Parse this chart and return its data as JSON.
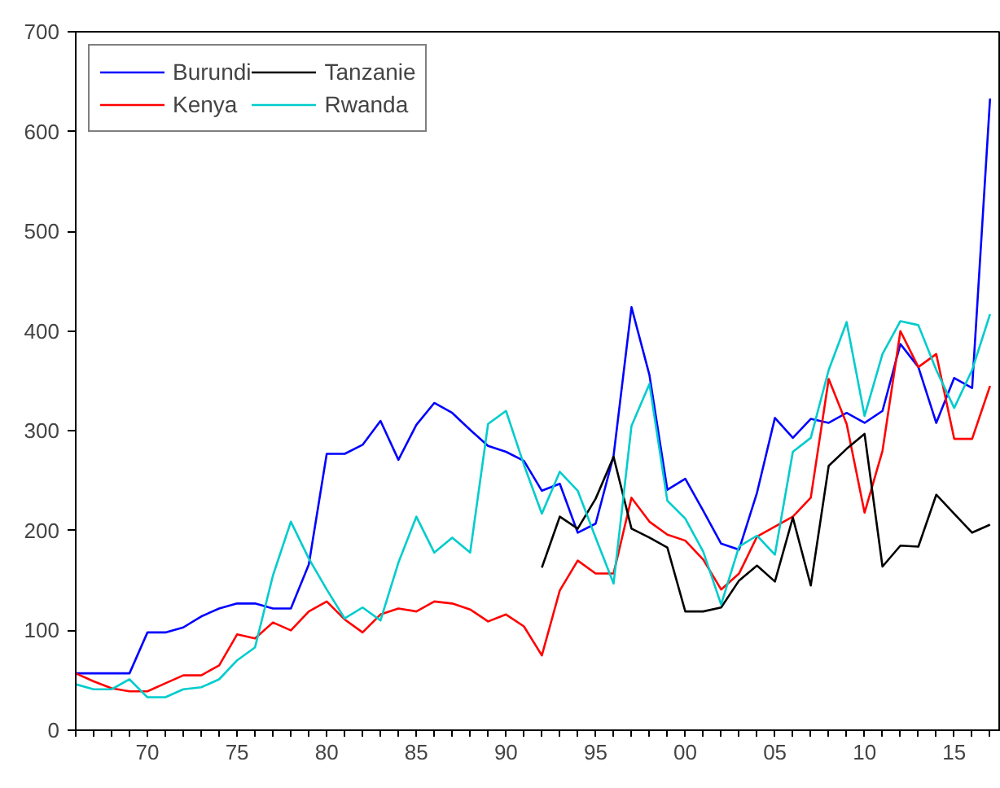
{
  "chart_data": {
    "type": "line",
    "x": [
      1966,
      1967,
      1968,
      1969,
      1970,
      1971,
      1972,
      1973,
      1974,
      1975,
      1976,
      1977,
      1978,
      1979,
      1980,
      1981,
      1982,
      1983,
      1984,
      1985,
      1986,
      1987,
      1988,
      1989,
      1990,
      1991,
      1992,
      1993,
      1994,
      1995,
      1996,
      1997,
      1998,
      1999,
      2000,
      2001,
      2002,
      2003,
      2004,
      2005,
      2006,
      2007,
      2008,
      2009,
      2010,
      2011,
      2012,
      2013,
      2014,
      2015,
      2016,
      2017
    ],
    "series": [
      {
        "name": "Burundi",
        "color": "#0000ff",
        "values": [
          57,
          57,
          57,
          57,
          98,
          98,
          103,
          114,
          122,
          127,
          127,
          122,
          122,
          166,
          277,
          277,
          286,
          310,
          271,
          306,
          328,
          318,
          301,
          285,
          279,
          270,
          240,
          247,
          198,
          207,
          275,
          424,
          356,
          241,
          252,
          220,
          187,
          181,
          238,
          313,
          293,
          312,
          308,
          318,
          308,
          320,
          387,
          364,
          308,
          353,
          343,
          633
        ]
      },
      {
        "name": "Kenya",
        "color": "#ff0000",
        "values": [
          57,
          49,
          42,
          39,
          39,
          47,
          55,
          55,
          65,
          96,
          92,
          108,
          100,
          119,
          129,
          111,
          98,
          116,
          122,
          119,
          129,
          127,
          121,
          109,
          116,
          104,
          75,
          140,
          170,
          157,
          157,
          233,
          209,
          196,
          190,
          171,
          141,
          157,
          194,
          204,
          214,
          233,
          352,
          307,
          218,
          280,
          400,
          364,
          377,
          292,
          292,
          345
        ]
      },
      {
        "name": "Tanzanie",
        "color": "#000000",
        "values": [
          null,
          null,
          null,
          null,
          null,
          null,
          null,
          null,
          null,
          null,
          null,
          null,
          null,
          null,
          null,
          null,
          null,
          null,
          null,
          null,
          null,
          null,
          null,
          null,
          null,
          null,
          163,
          214,
          202,
          232,
          274,
          202,
          193,
          183,
          119,
          119,
          123,
          150,
          165,
          149,
          213,
          145,
          265,
          282,
          297,
          164,
          185,
          184,
          236,
          217,
          198,
          206
        ]
      },
      {
        "name": "Rwanda",
        "color": "#00cccc",
        "values": [
          46,
          41,
          41,
          51,
          33,
          33,
          41,
          43,
          51,
          70,
          83,
          155,
          209,
          172,
          141,
          112,
          123,
          110,
          168,
          214,
          178,
          193,
          178,
          307,
          320,
          266,
          217,
          259,
          240,
          193,
          147,
          305,
          347,
          230,
          212,
          179,
          126,
          184,
          195,
          176,
          279,
          293,
          361,
          409,
          315,
          377,
          410,
          406,
          361,
          323,
          361,
          417
        ]
      }
    ],
    "xlim": [
      1966,
      2017.6
    ],
    "ylim": [
      0,
      700
    ],
    "yticks": [
      0,
      100,
      200,
      300,
      400,
      500,
      600,
      700
    ],
    "xticks": [
      {
        "value": 1966,
        "label": null
      },
      {
        "value": 1967,
        "label": null
      },
      {
        "value": 1968,
        "label": null
      },
      {
        "value": 1969,
        "label": null
      },
      {
        "value": 1970,
        "label": "70"
      },
      {
        "value": 1971,
        "label": null
      },
      {
        "value": 1972,
        "label": null
      },
      {
        "value": 1973,
        "label": null
      },
      {
        "value": 1974,
        "label": null
      },
      {
        "value": 1975,
        "label": "75"
      },
      {
        "value": 1976,
        "label": null
      },
      {
        "value": 1977,
        "label": null
      },
      {
        "value": 1978,
        "label": null
      },
      {
        "value": 1979,
        "label": null
      },
      {
        "value": 1980,
        "label": "80"
      },
      {
        "value": 1981,
        "label": null
      },
      {
        "value": 1982,
        "label": null
      },
      {
        "value": 1983,
        "label": null
      },
      {
        "value": 1984,
        "label": null
      },
      {
        "value": 1985,
        "label": "85"
      },
      {
        "value": 1986,
        "label": null
      },
      {
        "value": 1987,
        "label": null
      },
      {
        "value": 1988,
        "label": null
      },
      {
        "value": 1989,
        "label": null
      },
      {
        "value": 1990,
        "label": "90"
      },
      {
        "value": 1991,
        "label": null
      },
      {
        "value": 1992,
        "label": null
      },
      {
        "value": 1993,
        "label": null
      },
      {
        "value": 1994,
        "label": null
      },
      {
        "value": 1995,
        "label": "95"
      },
      {
        "value": 1996,
        "label": null
      },
      {
        "value": 1997,
        "label": null
      },
      {
        "value": 1998,
        "label": null
      },
      {
        "value": 1999,
        "label": null
      },
      {
        "value": 2000,
        "label": "00"
      },
      {
        "value": 2001,
        "label": null
      },
      {
        "value": 2002,
        "label": null
      },
      {
        "value": 2003,
        "label": null
      },
      {
        "value": 2004,
        "label": null
      },
      {
        "value": 2005,
        "label": "05"
      },
      {
        "value": 2006,
        "label": null
      },
      {
        "value": 2007,
        "label": null
      },
      {
        "value": 2008,
        "label": null
      },
      {
        "value": 2009,
        "label": null
      },
      {
        "value": 2010,
        "label": "10"
      },
      {
        "value": 2011,
        "label": null
      },
      {
        "value": 2012,
        "label": null
      },
      {
        "value": 2013,
        "label": null
      },
      {
        "value": 2014,
        "label": null
      },
      {
        "value": 2015,
        "label": "15"
      },
      {
        "value": 2016,
        "label": null
      },
      {
        "value": 2017,
        "label": null
      }
    ],
    "grid": false,
    "legend": "top left"
  }
}
